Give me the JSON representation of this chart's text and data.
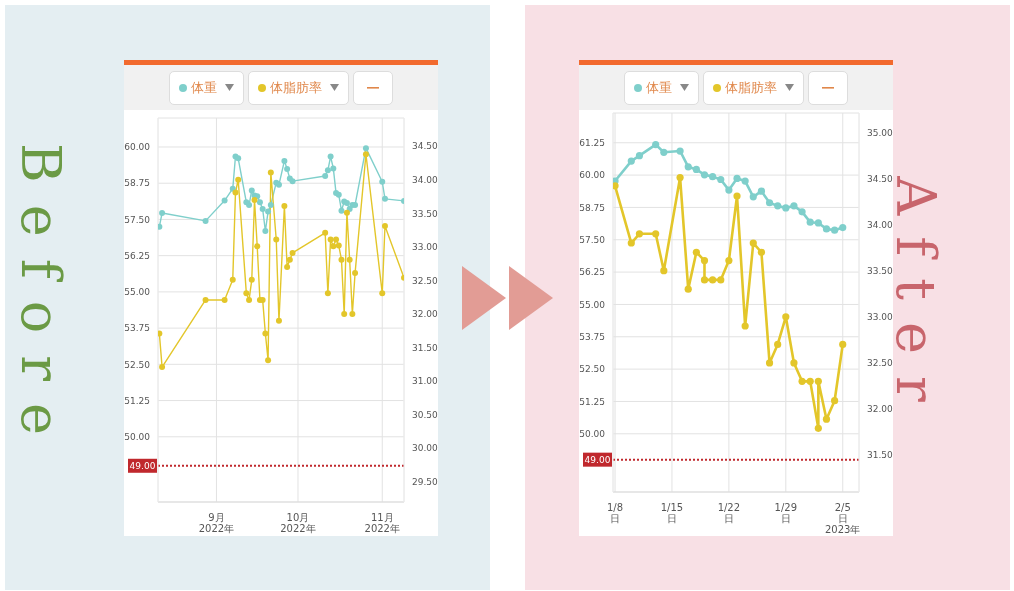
{
  "chart_data": [
    {
      "type": "line",
      "title": "Before",
      "legend": "top",
      "grid": true,
      "marker": "circle",
      "line_style": "solid",
      "x": [
        "2022-08-11",
        "2022-08-12",
        "2022-08-28",
        "2022-09-04",
        "2022-09-07",
        "2022-09-08",
        "2022-09-09",
        "2022-09-12",
        "2022-09-13",
        "2022-09-14",
        "2022-09-15",
        "2022-09-16",
        "2022-09-17",
        "2022-09-18",
        "2022-09-19",
        "2022-09-20",
        "2022-09-21",
        "2022-09-23",
        "2022-09-24",
        "2022-09-26",
        "2022-09-27",
        "2022-09-28",
        "2022-09-29",
        "2022-10-11",
        "2022-10-12",
        "2022-10-13",
        "2022-10-14",
        "2022-10-15",
        "2022-10-16",
        "2022-10-17",
        "2022-10-18",
        "2022-10-19",
        "2022-10-20",
        "2022-10-21",
        "2022-10-22",
        "2022-10-26",
        "2022-11-01",
        "2022-11-02",
        "2022-11-09"
      ],
      "series": [
        {
          "name": "体重",
          "color": "#7fcfcb",
          "values": [
            57.25,
            57.72,
            57.45,
            58.15,
            58.56,
            59.67,
            59.61,
            58.09,
            58.0,
            58.5,
            58.33,
            58.3,
            58.09,
            57.86,
            57.1,
            57.77,
            58.0,
            58.77,
            58.7,
            59.52,
            59.24,
            58.91,
            58.82,
            59.0,
            59.2,
            59.67,
            59.26,
            58.41,
            58.35,
            57.8,
            58.12,
            58.07,
            57.86,
            58.0,
            58.0,
            59.96,
            58.8,
            58.21,
            58.14
          ]
        },
        {
          "name": "体脂肪率",
          "color": "#e3c62a",
          "axis": "y2",
          "values": [
            31.71,
            31.21,
            32.21,
            32.21,
            32.51,
            33.81,
            34.0,
            32.31,
            32.21,
            32.51,
            33.7,
            33.01,
            32.21,
            32.21,
            31.71,
            31.31,
            34.11,
            33.11,
            31.9,
            33.61,
            32.7,
            32.81,
            32.91,
            33.21,
            32.31,
            33.11,
            33.01,
            33.11,
            33.02,
            32.81,
            32.0,
            33.51,
            32.81,
            32.0,
            32.61,
            34.38,
            32.31,
            33.31,
            32.54
          ]
        }
      ],
      "xlim": [
        "2022-08-10T12:00",
        "2022-11-09"
      ],
      "xticks": [
        {
          "value": "2022-09-01",
          "label": "9月\n2022年"
        },
        {
          "value": "2022-10-01",
          "label": "10月\n2022年"
        },
        {
          "value": "2022-11-01",
          "label": "11月\n2022年"
        }
      ],
      "ylim": [
        47.75,
        61.0
      ],
      "yticks": [
        {
          "value": 50,
          "label": "50.00"
        },
        {
          "value": 51.25,
          "label": "51.25"
        },
        {
          "value": 52.5,
          "label": "52.50"
        },
        {
          "value": 53.75,
          "label": "53.75"
        },
        {
          "value": 55,
          "label": "55.00"
        },
        {
          "value": 56.25,
          "label": "56.25"
        },
        {
          "value": 57.5,
          "label": "57.50"
        },
        {
          "value": 58.75,
          "label": "58.75"
        },
        {
          "value": 60,
          "label": "60.00"
        }
      ],
      "y2lim": [
        29.2,
        34.92
      ],
      "y2ticks": [
        {
          "value": 29.5,
          "label": "29.50"
        },
        {
          "value": 30,
          "label": "30.00"
        },
        {
          "value": 30.5,
          "label": "30.50"
        },
        {
          "value": 31,
          "label": "31.00"
        },
        {
          "value": 31.5,
          "label": "31.50"
        },
        {
          "value": 32,
          "label": "32.00"
        },
        {
          "value": 32.5,
          "label": "32.50"
        },
        {
          "value": 33,
          "label": "33.00"
        },
        {
          "value": 33.5,
          "label": "33.50"
        },
        {
          "value": 34,
          "label": "34.00"
        },
        {
          "value": 34.5,
          "label": "34.50"
        }
      ],
      "ref_lines": [
        {
          "axis": "y",
          "value": 49,
          "label": "49.00",
          "color": "#c0282d",
          "line_style": "dotted"
        }
      ]
    },
    {
      "type": "line",
      "title": "After",
      "legend": "top",
      "grid": true,
      "marker": "circle",
      "line_style": "solid",
      "series": [
        {
          "name": "体重",
          "color": "#7fcfcb",
          "x": [
            "2023-01-08",
            "2023-01-10",
            "2023-01-11",
            "2023-01-13",
            "2023-01-14",
            "2023-01-16",
            "2023-01-17",
            "2023-01-18",
            "2023-01-19",
            "2023-01-20",
            "2023-01-21",
            "2023-01-22",
            "2023-01-23",
            "2023-01-24",
            "2023-01-25",
            "2023-01-26",
            "2023-01-27",
            "2023-01-28",
            "2023-01-29",
            "2023-01-30",
            "2023-01-31",
            "2023-02-01",
            "2023-02-02",
            "2023-02-03",
            "2023-02-04",
            "2023-02-05"
          ],
          "values": [
            59.77,
            60.54,
            60.75,
            61.18,
            60.88,
            60.93,
            60.32,
            60.22,
            60.01,
            59.94,
            59.83,
            59.42,
            59.87,
            59.77,
            59.16,
            59.38,
            58.93,
            58.81,
            58.73,
            58.81,
            58.58,
            58.18,
            58.15,
            57.92,
            57.87,
            57.97
          ]
        },
        {
          "name": "体脂肪率",
          "color": "#e3c62a",
          "axis": "y2",
          "x": [
            "2023-01-08",
            "2023-01-10",
            "2023-01-11",
            "2023-01-13",
            "2023-01-14",
            "2023-01-16",
            "2023-01-17",
            "2023-01-18",
            "2023-01-19",
            "2023-01-19",
            "2023-01-20",
            "2023-01-21",
            "2023-01-22",
            "2023-01-23",
            "2023-01-24",
            "2023-01-25",
            "2023-01-26",
            "2023-01-27",
            "2023-01-28",
            "2023-01-29",
            "2023-01-30",
            "2023-01-31",
            "2023-02-01",
            "2023-02-02",
            "2023-02-02",
            "2023-02-03",
            "2023-02-04",
            "2023-02-05"
          ],
          "values": [
            34.42,
            33.8,
            33.9,
            33.9,
            33.5,
            34.51,
            33.3,
            33.7,
            33.61,
            33.4,
            33.4,
            33.4,
            33.61,
            34.31,
            32.9,
            33.8,
            33.7,
            32.5,
            32.7,
            33.0,
            32.5,
            32.3,
            32.3,
            31.79,
            32.3,
            31.89,
            32.09,
            32.7
          ]
        }
      ],
      "xlim": [
        "2023-01-07T18:00",
        "2023-02-07"
      ],
      "xticks": [
        {
          "value": "2023-01-08",
          "label": "1/8\n日"
        },
        {
          "value": "2023-01-15",
          "label": "1/15\n日"
        },
        {
          "value": "2023-01-22",
          "label": "1/22\n日"
        },
        {
          "value": "2023-01-29",
          "label": "1/29\n日"
        },
        {
          "value": "2023-02-05",
          "label": "2/5\n日\n2023年"
        }
      ],
      "ylim": [
        47.75,
        62.4
      ],
      "yticks": [
        {
          "value": 50,
          "label": "50.00"
        },
        {
          "value": 51.25,
          "label": "51.25"
        },
        {
          "value": 52.5,
          "label": "52.50"
        },
        {
          "value": 53.75,
          "label": "53.75"
        },
        {
          "value": 55,
          "label": "55.00"
        },
        {
          "value": 56.25,
          "label": "56.25"
        },
        {
          "value": 57.5,
          "label": "57.50"
        },
        {
          "value": 58.75,
          "label": "58.75"
        },
        {
          "value": 60,
          "label": "60.00"
        },
        {
          "value": 61.25,
          "label": "61.25"
        }
      ],
      "y2lim": [
        31.1,
        35.21
      ],
      "y2ticks": [
        {
          "value": 31.5,
          "label": "31.50"
        },
        {
          "value": 32,
          "label": "32.00"
        },
        {
          "value": 32.5,
          "label": "32.50"
        },
        {
          "value": 33,
          "label": "33.00"
        },
        {
          "value": 33.5,
          "label": "33.50"
        },
        {
          "value": 34,
          "label": "34.00"
        },
        {
          "value": 34.5,
          "label": "34.50"
        },
        {
          "value": 35,
          "label": "35.00"
        }
      ],
      "ref_lines": [
        {
          "axis": "y",
          "value": 49,
          "label": "49.00",
          "color": "#c0282d",
          "line_style": "dotted"
        }
      ]
    }
  ]
}
